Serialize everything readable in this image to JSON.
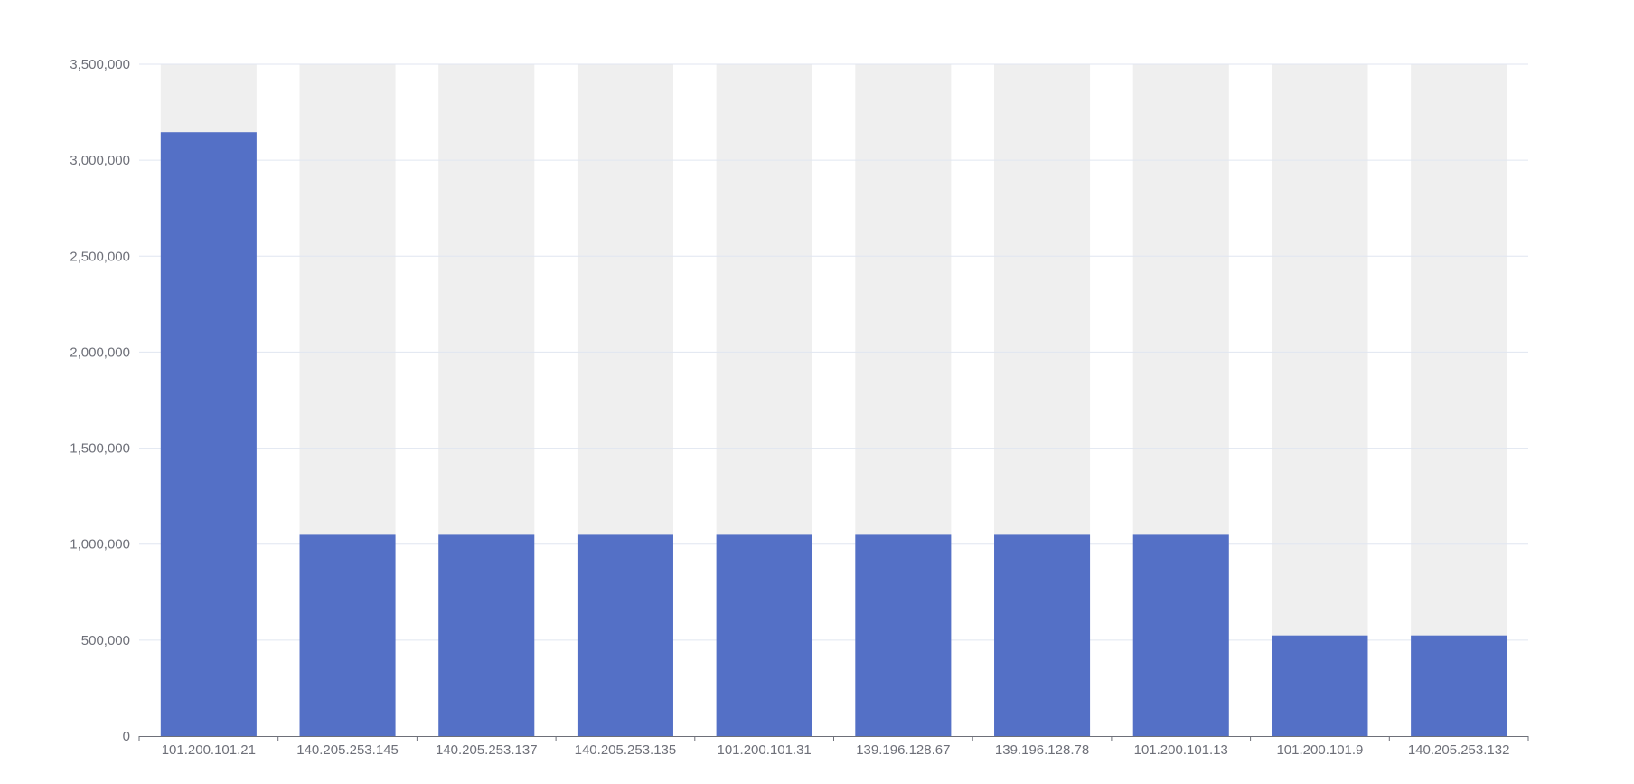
{
  "chart_data": {
    "type": "bar",
    "title": "",
    "xlabel": "",
    "ylabel": "",
    "categories": [
      "101.200.101.21",
      "140.205.253.145",
      "140.205.253.137",
      "140.205.253.135",
      "101.200.101.31",
      "139.196.128.67",
      "139.196.128.78",
      "101.200.101.13",
      "101.200.101.9",
      "140.205.253.132"
    ],
    "values": [
      3145728,
      1048576,
      1048576,
      1048576,
      1048576,
      1048576,
      1048576,
      1048576,
      524288,
      524288
    ],
    "ylim": [
      0,
      3500000
    ],
    "yticks": [
      0,
      500000,
      1000000,
      1500000,
      2000000,
      2500000,
      3000000,
      3500000
    ],
    "ytick_labels": [
      "0",
      "500,000",
      "1,000,000",
      "1,500,000",
      "2,000,000",
      "2,500,000",
      "3,000,000",
      "3,500,000"
    ],
    "show_background_bars": true,
    "grid": true,
    "legend": "none",
    "colors": {
      "bar": "#5470c6",
      "background_bar": "#efefef",
      "grid": "#e0e6f1",
      "axis": "#6e7079",
      "text": "#6e7079"
    }
  }
}
